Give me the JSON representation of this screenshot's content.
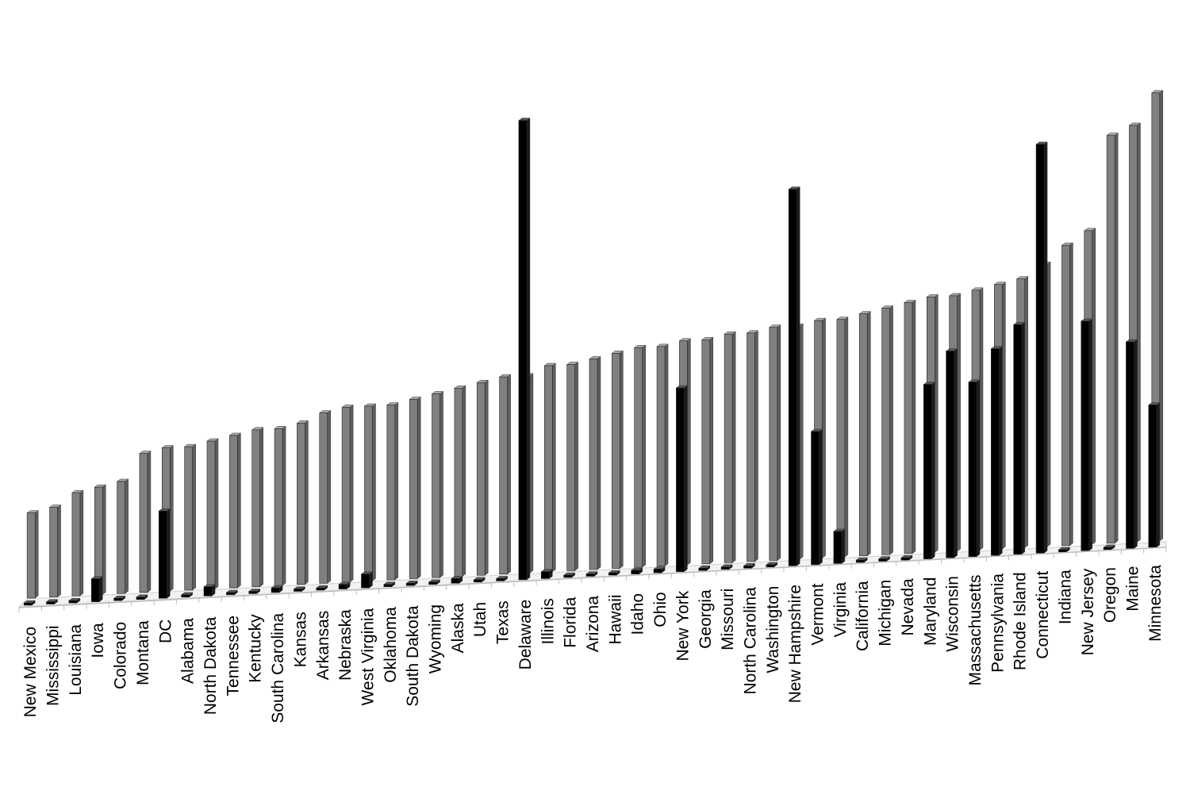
{
  "chart_data": {
    "type": "bar",
    "title": "",
    "xlabel": "",
    "ylabel": "",
    "ylim": [
      0,
      100
    ],
    "grid": false,
    "legend": "none",
    "categories": [
      "New Mexico",
      "Mississippi",
      "Louisiana",
      "Iowa",
      "Colorado",
      "Montana",
      "DC",
      "Alabama",
      "North Dakota",
      "Tennessee",
      "Kentucky",
      "South Carolina",
      "Kansas",
      "Arkansas",
      "Nebraska",
      "West Virginia",
      "Oklahoma",
      "South Dakota",
      "Wyoming",
      "Alaska",
      "Utah",
      "Texas",
      "Delaware",
      "Illinois",
      "Florida",
      "Arizona",
      "Hawaii",
      "Idaho",
      "Ohio",
      "New York",
      "Georgia",
      "Missouri",
      "North Carolina",
      "Washington",
      "New Hampshire",
      "Vermont",
      "Virginia",
      "California",
      "Michigan",
      "Nevada",
      "Maryland",
      "Wisconsin",
      "Massachusetts",
      "Pennsylvania",
      "Rhode Island",
      "Connecticut",
      "Indiana",
      "New Jersey",
      "Oregon",
      "Maine",
      "Minnesota"
    ],
    "series": [
      {
        "color": "#808080",
        "values": [
          19,
          20,
          23,
          24,
          25,
          31,
          32,
          32,
          33,
          34,
          35,
          35,
          36,
          38,
          39,
          39,
          39,
          40,
          41,
          42,
          43,
          44,
          44,
          46,
          46,
          47,
          48,
          49,
          49,
          50,
          50,
          51,
          51,
          52,
          52,
          53,
          53,
          54,
          55,
          56,
          57,
          57,
          58,
          59,
          60,
          63,
          67,
          70,
          91,
          93,
          100
        ]
      },
      {
        "color": "#000000",
        "values": [
          0.5,
          0.5,
          0.5,
          5,
          0.5,
          0.5,
          19,
          0.5,
          2,
          0.5,
          0.5,
          1,
          0.5,
          0.5,
          1,
          3,
          0.5,
          0.5,
          0.5,
          1,
          0.5,
          0.5,
          100,
          1.5,
          0.5,
          0.5,
          0.5,
          0.8,
          0.8,
          40,
          0.5,
          0.5,
          0.5,
          0.5,
          82,
          29,
          7,
          0.5,
          0.5,
          0.5,
          38,
          45,
          38,
          45,
          50,
          89,
          0.5,
          50,
          0.5,
          45,
          31
        ]
      }
    ]
  }
}
